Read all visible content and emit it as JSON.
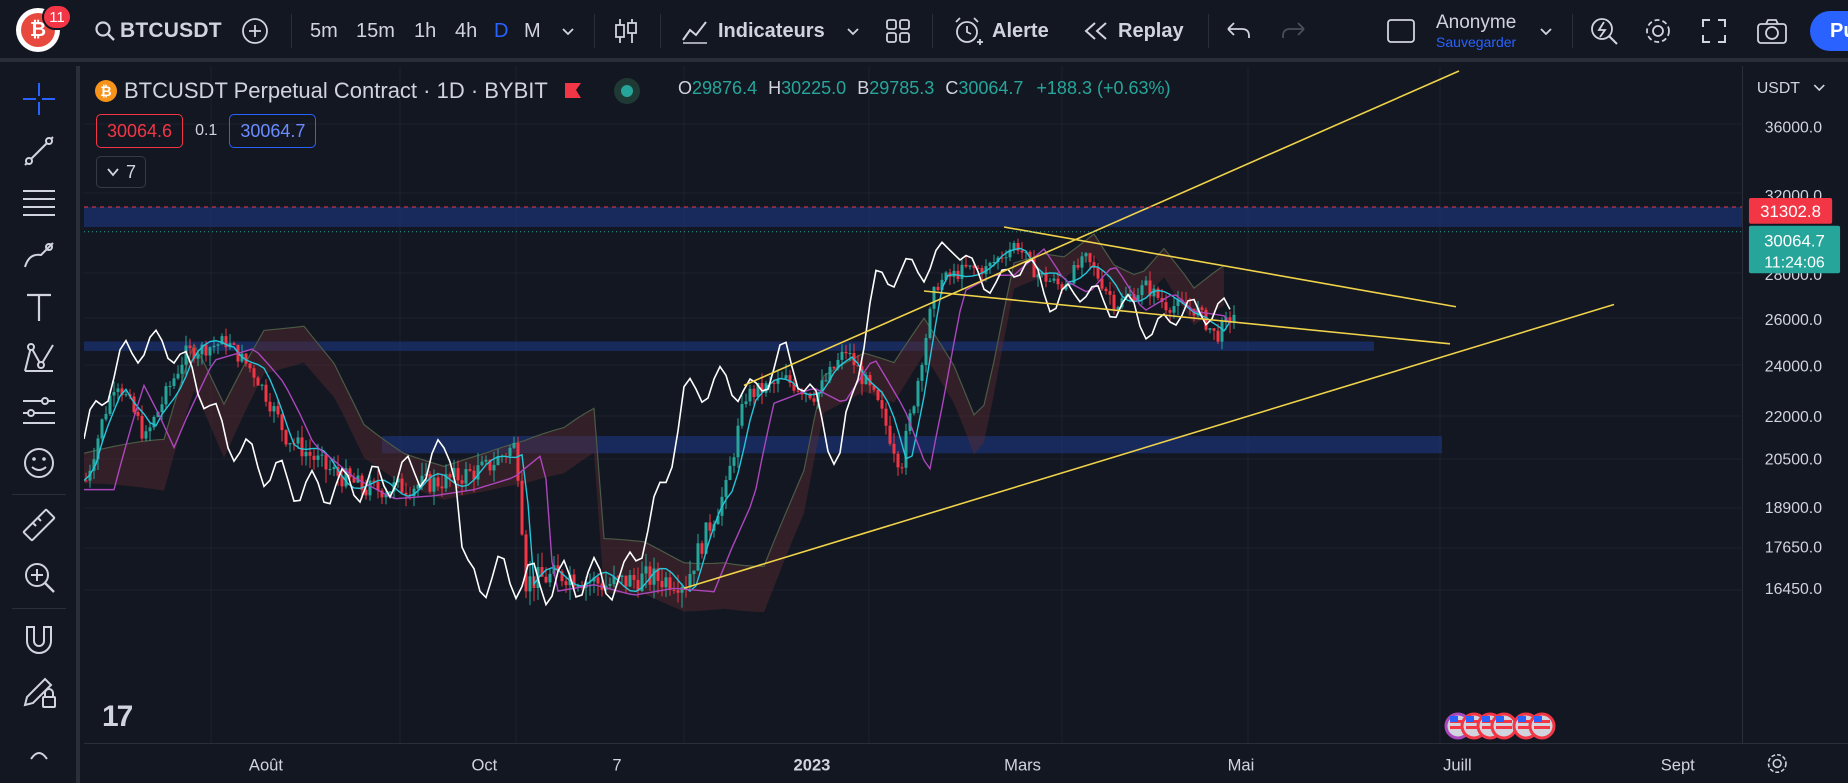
{
  "topbar": {
    "notifications": "11",
    "symbol": "BTCUSDT",
    "intervals": [
      "5m",
      "15m",
      "1h",
      "4h",
      "D",
      "M"
    ],
    "active_interval": "D",
    "indicators_label": "Indicateurs",
    "alert_label": "Alerte",
    "replay_label": "Replay",
    "account_name": "Anonyme",
    "account_save": "Sauvegarder",
    "publish_label": "Pu"
  },
  "legend": {
    "title": "BTCUSDT Perpetual Contract · 1D · BYBIT",
    "open_key": "O",
    "open": "29876.4",
    "high_key": "H",
    "high": "30225.0",
    "low_key": "B",
    "low": "29785.3",
    "close_key": "C",
    "close": "30064.7",
    "change": "+188.3 (+0.63%)",
    "bid": "30064.6",
    "spread": "0.1",
    "ask": "30064.7",
    "indicators_count": "7"
  },
  "price_axis": {
    "currency": "USDT",
    "ticks": [
      "36000.0",
      "32000.0",
      "28000.0",
      "26000.0",
      "24000.0",
      "22000.0",
      "20500.0",
      "18900.0",
      "17650.0",
      "16450.0"
    ],
    "alert_price": "31302.8",
    "last_price": "30064.7",
    "countdown": "11:24:06"
  },
  "time_axis": {
    "labels": [
      "Août",
      "Oct",
      "7",
      "2023",
      "Mars",
      "Mai",
      "Juill",
      "Sept"
    ]
  },
  "colors": {
    "background": "#131722",
    "up": "#26a69a",
    "down": "#f23645",
    "accent": "#2962ff",
    "trendline": "#f0d34a",
    "zone": "#1e3a8a"
  }
}
